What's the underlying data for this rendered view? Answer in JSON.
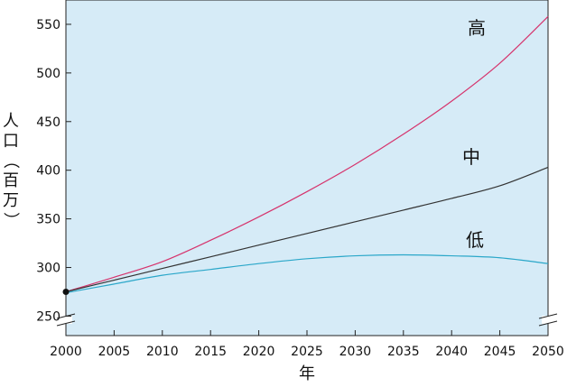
{
  "chart_data": {
    "type": "line",
    "xlabel": "年",
    "ylabel": "人口（百万）",
    "ylabel_chars": [
      "人",
      "口",
      "（",
      "百",
      "万",
      "）"
    ],
    "xlim": [
      2000,
      2050
    ],
    "ylim": [
      230,
      575
    ],
    "axis_break": true,
    "grid": false,
    "background_color": "#d6ebf7",
    "xticks": [
      2000,
      2005,
      2010,
      2015,
      2020,
      2025,
      2030,
      2035,
      2040,
      2045,
      2050
    ],
    "yticks": [
      250,
      300,
      350,
      400,
      450,
      500,
      550
    ],
    "start_point": {
      "x": 2000,
      "y": 275
    },
    "series": [
      {
        "name": "高",
        "color": "#d6336c",
        "x": [
          2000,
          2005,
          2010,
          2015,
          2020,
          2025,
          2030,
          2035,
          2040,
          2045,
          2050
        ],
        "values": [
          275,
          290,
          306,
          328,
          352,
          378,
          406,
          437,
          471,
          510,
          558
        ]
      },
      {
        "name": "中",
        "color": "#333333",
        "x": [
          2000,
          2005,
          2010,
          2015,
          2020,
          2025,
          2030,
          2035,
          2040,
          2045,
          2050
        ],
        "values": [
          275,
          287,
          299,
          311,
          323,
          335,
          347,
          359,
          371,
          384,
          403
        ]
      },
      {
        "name": "低",
        "color": "#2aa7c9",
        "x": [
          2000,
          2005,
          2010,
          2015,
          2020,
          2025,
          2030,
          2035,
          2040,
          2045,
          2050
        ],
        "values": [
          274,
          283,
          292,
          298,
          304,
          309,
          312,
          313,
          312,
          310,
          304
        ]
      }
    ]
  }
}
